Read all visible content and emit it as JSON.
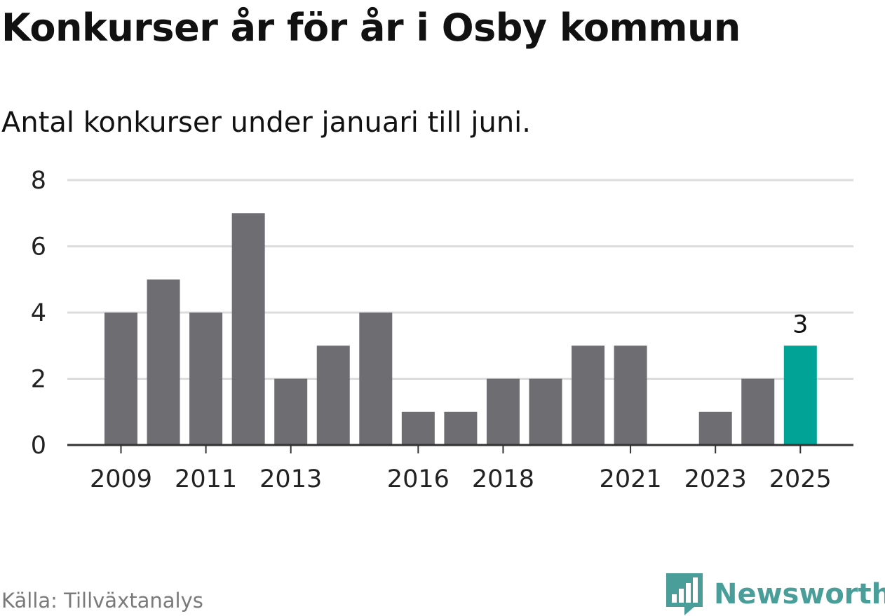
{
  "title": "Konkurser år för år i Osby kommun",
  "subtitle": "Antal konkurser under januari till juni.",
  "source": "Källa: Tillväxtanalys",
  "brand": {
    "name": "Newsworthy",
    "icon": "newsworthy-logo-icon",
    "color": "#4a9e99"
  },
  "colors": {
    "bar": "#6e6d72",
    "highlight": "#00a396",
    "grid": "#dcdcdc",
    "axis": "#333333"
  },
  "chart_data": {
    "type": "bar",
    "title": "Konkurser år för år i Osby kommun",
    "subtitle": "Antal konkurser under januari till juni.",
    "xlabel": "",
    "ylabel": "",
    "categories": [
      "2009",
      "2010",
      "2011",
      "2012",
      "2013",
      "2014",
      "2015",
      "2016",
      "2017",
      "2018",
      "2019",
      "2020",
      "2021",
      "2022",
      "2023",
      "2024",
      "2025"
    ],
    "values": [
      4,
      5,
      4,
      7,
      2,
      3,
      4,
      1,
      1,
      2,
      2,
      3,
      3,
      0,
      1,
      2,
      3
    ],
    "ylim": [
      0,
      8
    ],
    "yticks": [
      0,
      2,
      4,
      6,
      8
    ],
    "xtick_labels": [
      "2009",
      "2011",
      "2013",
      "2016",
      "2018",
      "2021",
      "2023",
      "2025"
    ],
    "highlight": {
      "category": "2025",
      "label": "3"
    },
    "grid": true
  }
}
